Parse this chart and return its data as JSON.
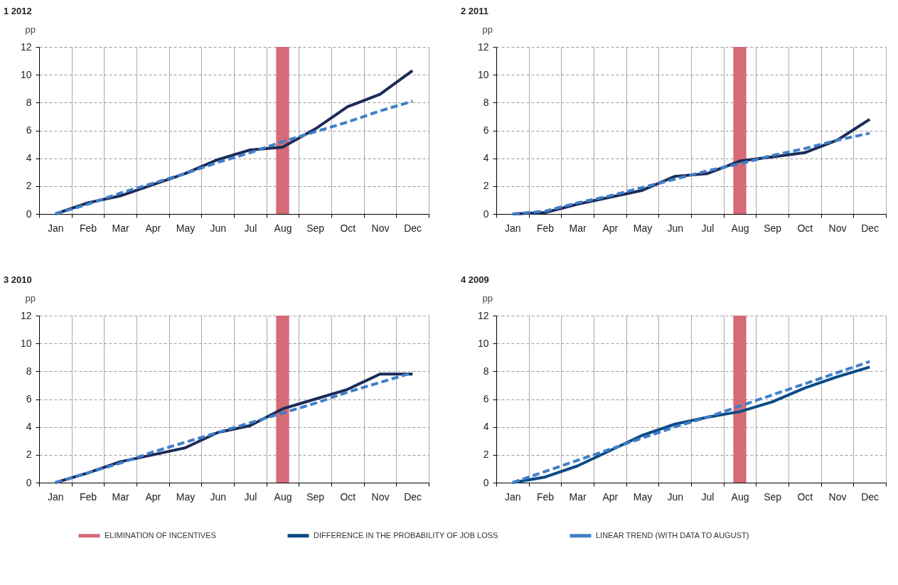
{
  "chart_data": [
    {
      "type": "line",
      "title": "1  2012",
      "ylabel": "pp",
      "categories": [
        "Jan",
        "Feb",
        "Mar",
        "Apr",
        "May",
        "Jun",
        "Jul",
        "Aug",
        "Sep",
        "Oct",
        "Nov",
        "Dec"
      ],
      "ylim": [
        0,
        12
      ],
      "yticks": [
        0,
        2,
        4,
        6,
        8,
        10,
        12
      ],
      "grid": true,
      "series": [
        {
          "type": "bar",
          "color": "#d66a76",
          "values": [
            null,
            null,
            null,
            null,
            null,
            null,
            null,
            12,
            null,
            null,
            null,
            null
          ]
        },
        {
          "color": "#1b2a58",
          "line_style": "solid",
          "values": [
            0,
            0.8,
            1.3,
            2.1,
            2.9,
            3.9,
            4.6,
            4.8,
            6.1,
            7.7,
            8.6,
            10.3
          ]
        },
        {
          "color": "#3f7fc8",
          "line_style": "dashed",
          "values": [
            0,
            0.7,
            1.5,
            2.2,
            2.9,
            3.7,
            4.4,
            5.2,
            5.9,
            6.6,
            7.4,
            8.1
          ]
        }
      ]
    },
    {
      "type": "line",
      "title": "2  2011",
      "ylabel": "pp",
      "categories": [
        "Jan",
        "Feb",
        "Mar",
        "Apr",
        "May",
        "Jun",
        "Jul",
        "Aug",
        "Sep",
        "Oct",
        "Nov",
        "Dec"
      ],
      "ylim": [
        0,
        12
      ],
      "yticks": [
        0,
        2,
        4,
        6,
        8,
        10,
        12
      ],
      "grid": true,
      "series": [
        {
          "type": "bar",
          "color": "#d66a76",
          "values": [
            null,
            null,
            null,
            null,
            null,
            null,
            null,
            12,
            null,
            null,
            null,
            null
          ]
        },
        {
          "color": "#1b2a58",
          "line_style": "solid",
          "values": [
            0,
            0.1,
            0.7,
            1.2,
            1.7,
            2.7,
            2.9,
            3.8,
            4.1,
            4.4,
            5.3,
            6.8
          ]
        },
        {
          "color": "#3f7fc8",
          "line_style": "dashed",
          "values": [
            0,
            0.2,
            0.8,
            1.3,
            1.9,
            2.5,
            3.1,
            3.6,
            4.2,
            4.7,
            5.3,
            5.8
          ]
        }
      ]
    },
    {
      "type": "line",
      "title": "3  2010",
      "ylabel": "pp",
      "categories": [
        "Jan",
        "Feb",
        "Mar",
        "Apr",
        "May",
        "Jun",
        "Jul",
        "Aug",
        "Sep",
        "Oct",
        "Nov",
        "Dec"
      ],
      "ylim": [
        0,
        12
      ],
      "yticks": [
        0,
        2,
        4,
        6,
        8,
        10,
        12
      ],
      "grid": true,
      "series": [
        {
          "type": "bar",
          "color": "#d66a76",
          "values": [
            null,
            null,
            null,
            null,
            null,
            null,
            null,
            12,
            null,
            null,
            null,
            null
          ]
        },
        {
          "color": "#1b2a58",
          "line_style": "solid",
          "values": [
            0,
            0.7,
            1.5,
            2.0,
            2.5,
            3.6,
            4.1,
            5.3,
            6.0,
            6.7,
            7.8,
            7.8
          ]
        },
        {
          "color": "#3f7fc8",
          "line_style": "dashed",
          "values": [
            0,
            0.7,
            1.4,
            2.2,
            2.9,
            3.6,
            4.3,
            5.0,
            5.7,
            6.5,
            7.2,
            7.9
          ]
        }
      ]
    },
    {
      "type": "line",
      "title": "4  2009",
      "ylabel": "pp",
      "categories": [
        "Jan",
        "Feb",
        "Mar",
        "Apr",
        "May",
        "Jun",
        "Jul",
        "Aug",
        "Sep",
        "Oct",
        "Nov",
        "Dec"
      ],
      "ylim": [
        0,
        12
      ],
      "yticks": [
        0,
        2,
        4,
        6,
        8,
        10,
        12
      ],
      "grid": true,
      "legend": "bottom",
      "series": [
        {
          "type": "bar",
          "name": "ELIMINATION OF INCENTIVES",
          "color": "#d66a76",
          "values": [
            null,
            null,
            null,
            null,
            null,
            null,
            null,
            12,
            null,
            null,
            null,
            null
          ]
        },
        {
          "name": "DIFFERENCE IN THE PROBABILITY OF JOB LOSS",
          "color": "#0b4b86",
          "line_style": "solid",
          "values": [
            0,
            0.4,
            1.2,
            2.3,
            3.4,
            4.2,
            4.7,
            5.1,
            5.8,
            6.8,
            7.6,
            8.3
          ]
        },
        {
          "name": "LINEAR TREND (WITH DATA TO AUGUST)",
          "color": "#3f7fc8",
          "line_style": "dashed",
          "values": [
            0,
            0.8,
            1.6,
            2.4,
            3.2,
            4.0,
            4.7,
            5.5,
            6.3,
            7.1,
            7.9,
            8.7
          ]
        }
      ]
    }
  ]
}
